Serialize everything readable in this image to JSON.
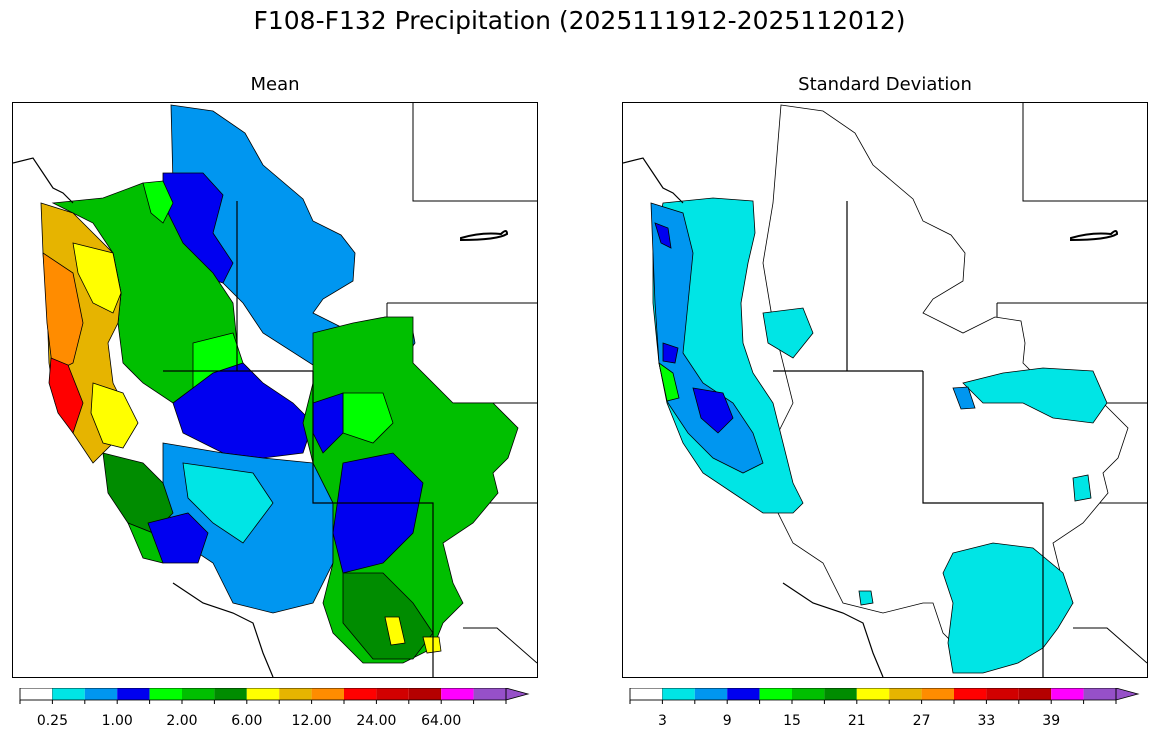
{
  "title": "F108-F132 Precipitation (2025111912-2025112012)",
  "chart_data": [
    {
      "type": "heatmap",
      "title": "Mean",
      "description_units": "precipitation",
      "colorbar": {
        "colors": [
          "#ffffff",
          "#00e5e5",
          "#0096f0",
          "#0000f0",
          "#00ff00",
          "#00bf00",
          "#008c00",
          "#ffff00",
          "#e6b400",
          "#ff8c00",
          "#ff0000",
          "#d20000",
          "#b40000",
          "#ff00ff",
          "#9650c8"
        ],
        "tick_labels": [
          "0.25",
          "1.00",
          "2.00",
          "6.00",
          "12.00",
          "24.00",
          "64.00"
        ],
        "extend": "max"
      }
    },
    {
      "type": "heatmap",
      "title": "Standard Deviation",
      "colorbar": {
        "colors": [
          "#ffffff",
          "#00e5e5",
          "#0096f0",
          "#0000f0",
          "#00ff00",
          "#00bf00",
          "#008c00",
          "#ffff00",
          "#e6b400",
          "#ff8c00",
          "#ff0000",
          "#d20000",
          "#b40000",
          "#ff00ff",
          "#9650c8"
        ],
        "tick_labels": [
          "3",
          "9",
          "15",
          "21",
          "27",
          "33",
          "39"
        ],
        "extend": "max"
      }
    }
  ]
}
